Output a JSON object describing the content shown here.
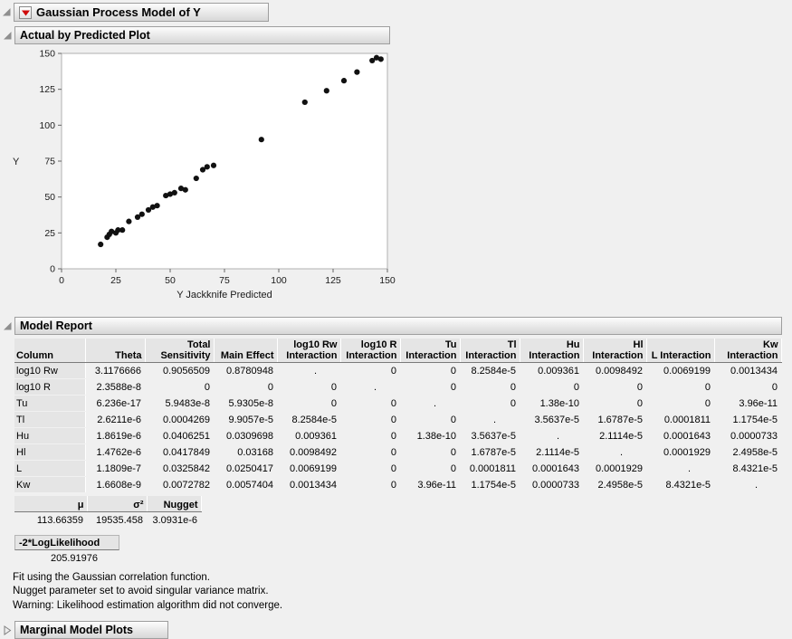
{
  "report": {
    "title": "Gaussian Process Model of Y"
  },
  "sections": {
    "actual_by_predicted": {
      "title": "Actual by Predicted Plot"
    },
    "model_report": {
      "title": "Model Report"
    },
    "marginal_model_plots": {
      "title": "Marginal Model Plots"
    }
  },
  "chart_data": {
    "type": "scatter",
    "title": "Actual by Predicted Plot",
    "xlabel": "Y Jackknife Predicted",
    "ylabel": "Y",
    "xlim": [
      0,
      150
    ],
    "ylim": [
      0,
      150
    ],
    "xticks": [
      0,
      25,
      50,
      75,
      100,
      125,
      150
    ],
    "yticks": [
      0,
      25,
      50,
      75,
      100,
      125,
      150
    ],
    "grid": false,
    "marker_color": "#111111",
    "points": [
      [
        18,
        17
      ],
      [
        21,
        22
      ],
      [
        22,
        24
      ],
      [
        23,
        26
      ],
      [
        25,
        25
      ],
      [
        26,
        27
      ],
      [
        28,
        27
      ],
      [
        31,
        33
      ],
      [
        35,
        36
      ],
      [
        37,
        38
      ],
      [
        40,
        41
      ],
      [
        42,
        43
      ],
      [
        44,
        44
      ],
      [
        48,
        51
      ],
      [
        50,
        52
      ],
      [
        52,
        53
      ],
      [
        55,
        56
      ],
      [
        57,
        55
      ],
      [
        62,
        63
      ],
      [
        65,
        69
      ],
      [
        67,
        71
      ],
      [
        70,
        72
      ],
      [
        92,
        90
      ],
      [
        112,
        116
      ],
      [
        122,
        124
      ],
      [
        130,
        131
      ],
      [
        136,
        137
      ],
      [
        143,
        145
      ],
      [
        145,
        147
      ],
      [
        147,
        146
      ]
    ]
  },
  "model_report": {
    "columns": [
      {
        "l1": "",
        "l2": "Column"
      },
      {
        "l1": "",
        "l2": "Theta"
      },
      {
        "l1": "Total",
        "l2": "Sensitivity"
      },
      {
        "l1": "",
        "l2": "Main Effect"
      },
      {
        "l1": "log10 Rw",
        "l2": "Interaction"
      },
      {
        "l1": "log10 R",
        "l2": "Interaction"
      },
      {
        "l1": "Tu",
        "l2": "Interaction"
      },
      {
        "l1": "Tl",
        "l2": "Interaction"
      },
      {
        "l1": "Hu",
        "l2": "Interaction"
      },
      {
        "l1": "Hl",
        "l2": "Interaction"
      },
      {
        "l1": "",
        "l2": "L Interaction"
      },
      {
        "l1": "Kw",
        "l2": "Interaction"
      }
    ],
    "rows": [
      {
        "label": "log10 Rw",
        "values": [
          "3.1176666",
          "0.9056509",
          "0.8780948",
          ".",
          "0",
          "0",
          "8.2584e-5",
          "0.009361",
          "0.0098492",
          "0.0069199",
          "0.0013434"
        ]
      },
      {
        "label": "log10 R",
        "values": [
          "2.3588e-8",
          "0",
          "0",
          "0",
          ".",
          "0",
          "0",
          "0",
          "0",
          "0",
          "0"
        ]
      },
      {
        "label": "Tu",
        "values": [
          "6.236e-17",
          "5.9483e-8",
          "5.9305e-8",
          "0",
          "0",
          ".",
          "0",
          "1.38e-10",
          "0",
          "0",
          "3.96e-11"
        ]
      },
      {
        "label": "Tl",
        "values": [
          "2.6211e-6",
          "0.0004269",
          "9.9057e-5",
          "8.2584e-5",
          "0",
          "0",
          ".",
          "3.5637e-5",
          "1.6787e-5",
          "0.0001811",
          "1.1754e-5"
        ]
      },
      {
        "label": "Hu",
        "values": [
          "1.8619e-6",
          "0.0406251",
          "0.0309698",
          "0.009361",
          "0",
          "1.38e-10",
          "3.5637e-5",
          ".",
          "2.1114e-5",
          "0.0001643",
          "0.0000733"
        ]
      },
      {
        "label": "Hl",
        "values": [
          "1.4762e-6",
          "0.0417849",
          "0.03168",
          "0.0098492",
          "0",
          "0",
          "1.6787e-5",
          "2.1114e-5",
          ".",
          "0.0001929",
          "2.4958e-5"
        ]
      },
      {
        "label": "L",
        "values": [
          "1.1809e-7",
          "0.0325842",
          "0.0250417",
          "0.0069199",
          "0",
          "0",
          "0.0001811",
          "0.0001643",
          "0.0001929",
          ".",
          "8.4321e-5"
        ]
      },
      {
        "label": "Kw",
        "values": [
          "1.6608e-9",
          "0.0072782",
          "0.0057404",
          "0.0013434",
          "0",
          "3.96e-11",
          "1.1754e-5",
          "0.0000733",
          "2.4958e-5",
          "8.4321e-5",
          "."
        ]
      }
    ]
  },
  "mu_table": {
    "headers": [
      "μ",
      "σ²",
      "Nugget"
    ],
    "values": [
      "113.66359",
      "19535.458",
      "3.0931e-6"
    ]
  },
  "loglikelihood": {
    "label": "-2*LogLikelihood",
    "value": "205.91976"
  },
  "notes": [
    "Fit using the Gaussian correlation function.",
    "Nugget parameter set to avoid singular variance matrix.",
    "Warning: Likelihood estimation algorithm did not converge."
  ]
}
